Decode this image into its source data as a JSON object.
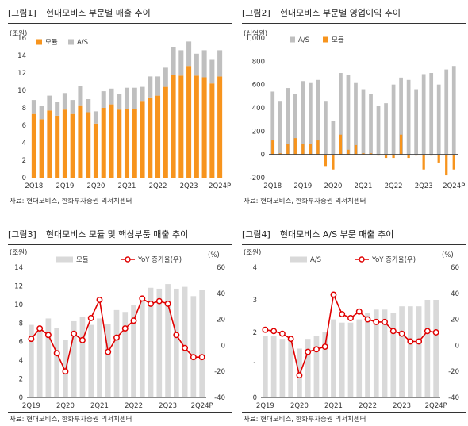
{
  "source_label": "자료: 현대모비스, 한화투자증권 리서치센터",
  "chart_data": [
    {
      "figure": "[그림1]",
      "title": "현대모비스 부문별 매출 추이",
      "type": "bar",
      "stacked": true,
      "unit": "(조원)",
      "ylim": [
        0,
        16
      ],
      "yticks": [
        0,
        2,
        4,
        6,
        8,
        10,
        12,
        14,
        16
      ],
      "x_tick_labels": [
        "2Q18",
        "2Q19",
        "2Q20",
        "2Q21",
        "2Q22",
        "2Q23",
        "2Q24P"
      ],
      "legend_position": "top-left",
      "colors": {
        "모듈": "#F7941D",
        "A/S": "#BFBFBF"
      },
      "categories": [
        "2Q18",
        "3Q18",
        "4Q18",
        "1Q19",
        "2Q19",
        "3Q19",
        "4Q19",
        "1Q20",
        "2Q20",
        "3Q20",
        "4Q20",
        "1Q21",
        "2Q21",
        "3Q21",
        "4Q21",
        "1Q22",
        "2Q22",
        "3Q22",
        "4Q22",
        "1Q23",
        "2Q23",
        "3Q23",
        "4Q23",
        "1Q24",
        "2Q24P"
      ],
      "series": [
        {
          "name": "모듈",
          "values": [
            7.3,
            6.7,
            7.7,
            7.1,
            7.8,
            7.3,
            8.3,
            7.5,
            6.2,
            8.0,
            8.4,
            7.8,
            7.9,
            7.9,
            8.8,
            9.2,
            9.4,
            10.4,
            11.8,
            11.7,
            12.8,
            11.7,
            11.5,
            10.8,
            11.6
          ]
        },
        {
          "name": "A/S",
          "values": [
            1.6,
            1.5,
            1.7,
            1.6,
            1.9,
            1.6,
            2.2,
            1.5,
            1.4,
            1.9,
            1.8,
            1.8,
            2.4,
            2.4,
            1.6,
            2.4,
            2.2,
            2.2,
            3.2,
            2.9,
            2.8,
            2.5,
            3.1,
            2.7,
            3.0
          ]
        }
      ]
    },
    {
      "figure": "[그림2]",
      "title": "현대모비스 부문별 영업이익 추이",
      "type": "bar",
      "stacked": false,
      "overlapping": true,
      "unit": "(십억원)",
      "ylim": [
        -200,
        1000
      ],
      "yticks": [
        -200,
        0,
        200,
        400,
        600,
        800,
        1000
      ],
      "x_tick_labels": [
        "2Q18",
        "2Q19",
        "2Q20",
        "2Q21",
        "2Q22",
        "2Q23",
        "2Q24P"
      ],
      "legend_position": "top-left",
      "colors": {
        "모듈": "#F7941D",
        "A/S": "#BFBFBF"
      },
      "categories": [
        "2Q18",
        "3Q18",
        "4Q18",
        "1Q19",
        "2Q19",
        "3Q19",
        "4Q19",
        "1Q20",
        "2Q20",
        "3Q20",
        "4Q20",
        "1Q21",
        "2Q21",
        "3Q21",
        "4Q21",
        "1Q22",
        "2Q22",
        "3Q22",
        "4Q22",
        "1Q23",
        "2Q23",
        "3Q23",
        "4Q23",
        "1Q24",
        "2Q24P"
      ],
      "series": [
        {
          "name": "A/S",
          "values": [
            540,
            460,
            570,
            520,
            630,
            620,
            640,
            460,
            290,
            700,
            680,
            620,
            560,
            520,
            420,
            440,
            600,
            660,
            640,
            560,
            690,
            700,
            600,
            730,
            760
          ]
        },
        {
          "name": "모듈",
          "values": [
            120,
            10,
            90,
            140,
            90,
            90,
            120,
            -100,
            -130,
            170,
            40,
            80,
            10,
            10,
            -10,
            -30,
            -30,
            170,
            -30,
            -10,
            -130,
            -10,
            -70,
            -180,
            -130
          ]
        }
      ]
    },
    {
      "figure": "[그림3]",
      "title": "현대모비스 모듈 및 핵심부품 매출 추이",
      "type": "bar+line",
      "unit_left": "(조원)",
      "unit_right": "(%)",
      "ylim": [
        0,
        14
      ],
      "yticks": [
        0,
        2,
        4,
        6,
        8,
        10,
        12,
        14
      ],
      "y2lim": [
        -40,
        60
      ],
      "y2ticks": [
        -40,
        -20,
        0,
        20,
        40,
        60
      ],
      "x_tick_labels": [
        "2Q19",
        "2Q20",
        "2Q21",
        "2Q22",
        "2Q23",
        "2Q24P"
      ],
      "legend_position": "top",
      "colors": {
        "모듈": "#D9D9D9",
        "YoY 증가율(우)": "#E00000"
      },
      "categories": [
        "2Q19",
        "3Q19",
        "4Q19",
        "1Q20",
        "2Q20",
        "3Q20",
        "4Q20",
        "1Q21",
        "2Q21",
        "3Q21",
        "4Q21",
        "1Q22",
        "2Q22",
        "3Q22",
        "4Q22",
        "1Q23",
        "2Q23",
        "3Q23",
        "4Q23",
        "1Q24",
        "2Q24P"
      ],
      "series": [
        {
          "name": "모듈",
          "axis": "left",
          "values": [
            7.8,
            7.3,
            8.5,
            7.5,
            6.2,
            8.2,
            8.7,
            7.8,
            8.5,
            7.9,
            9.4,
            9.2,
            9.9,
            10.4,
            11.8,
            11.7,
            12.2,
            11.7,
            11.9,
            10.9,
            11.6
          ]
        },
        {
          "name": "YoY 증가율(우)",
          "axis": "right",
          "values": [
            5,
            13,
            8,
            -6,
            -20,
            9,
            4,
            21,
            35,
            -5,
            6,
            13,
            19,
            36,
            32,
            34,
            32,
            8,
            -2,
            -9,
            -9
          ]
        }
      ]
    },
    {
      "figure": "[그림4]",
      "title": "현대모비스 A/S 부문 매출 추이",
      "type": "bar+line",
      "unit_left": "(조원)",
      "unit_right": "(%)",
      "ylim": [
        0,
        4
      ],
      "yticks": [
        0,
        1,
        2,
        3,
        4
      ],
      "y2lim": [
        -40,
        60
      ],
      "y2ticks": [
        -40,
        -20,
        0,
        20,
        40,
        60
      ],
      "x_tick_labels": [
        "2Q19",
        "2Q20",
        "2Q21",
        "2Q22",
        "2Q23",
        "2Q24P"
      ],
      "legend_position": "top",
      "colors": {
        "A/S": "#D9D9D9",
        "YoY 증가율(우)": "#E00000"
      },
      "categories": [
        "2Q19",
        "3Q19",
        "4Q19",
        "1Q20",
        "2Q20",
        "3Q20",
        "4Q20",
        "1Q21",
        "2Q21",
        "3Q21",
        "4Q21",
        "1Q22",
        "2Q22",
        "3Q22",
        "4Q22",
        "1Q23",
        "2Q23",
        "3Q23",
        "4Q23",
        "1Q24",
        "2Q24P"
      ],
      "series": [
        {
          "name": "A/S",
          "axis": "left",
          "values": [
            1.9,
            1.9,
            1.8,
            1.9,
            1.5,
            1.8,
            1.9,
            2.0,
            2.4,
            2.3,
            2.3,
            2.4,
            2.6,
            2.7,
            2.7,
            2.6,
            2.8,
            2.8,
            2.8,
            3.0,
            3.0
          ]
        },
        {
          "name": "YoY 증가율(우)",
          "axis": "right",
          "values": [
            12,
            11,
            9,
            5,
            -23,
            -5,
            -3,
            -1,
            39,
            24,
            21,
            26,
            20,
            18,
            18,
            11,
            9,
            3,
            3,
            11,
            10
          ]
        }
      ]
    }
  ]
}
